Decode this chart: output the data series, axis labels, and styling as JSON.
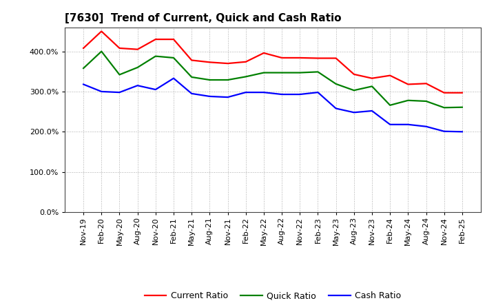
{
  "title": "[7630]  Trend of Current, Quick and Cash Ratio",
  "x_labels": [
    "Nov-19",
    "Feb-20",
    "May-20",
    "Aug-20",
    "Nov-20",
    "Feb-21",
    "May-21",
    "Aug-21",
    "Nov-21",
    "Feb-22",
    "May-22",
    "Aug-22",
    "Nov-22",
    "Feb-23",
    "May-23",
    "Aug-23",
    "Nov-23",
    "Feb-24",
    "May-24",
    "Aug-24",
    "Nov-24",
    "Feb-25"
  ],
  "current_ratio": [
    408,
    450,
    408,
    405,
    430,
    430,
    378,
    373,
    370,
    374,
    396,
    384,
    384,
    383,
    383,
    343,
    333,
    340,
    318,
    320,
    297,
    297
  ],
  "quick_ratio": [
    358,
    400,
    342,
    360,
    388,
    384,
    336,
    329,
    329,
    337,
    347,
    347,
    347,
    349,
    319,
    303,
    313,
    266,
    278,
    276,
    260,
    261
  ],
  "cash_ratio": [
    318,
    300,
    298,
    315,
    305,
    333,
    295,
    288,
    286,
    298,
    298,
    293,
    293,
    298,
    258,
    248,
    252,
    218,
    218,
    213,
    201,
    200
  ],
  "ylim": [
    0,
    460
  ],
  "yticks": [
    0,
    100,
    200,
    300,
    400
  ],
  "current_color": "#ff0000",
  "quick_color": "#008000",
  "cash_color": "#0000ff",
  "grid_color": "#aaaaaa",
  "bg_color": "#ffffff",
  "line_width": 1.6,
  "title_fontsize": 11,
  "legend_fontsize": 9,
  "tick_fontsize": 8
}
